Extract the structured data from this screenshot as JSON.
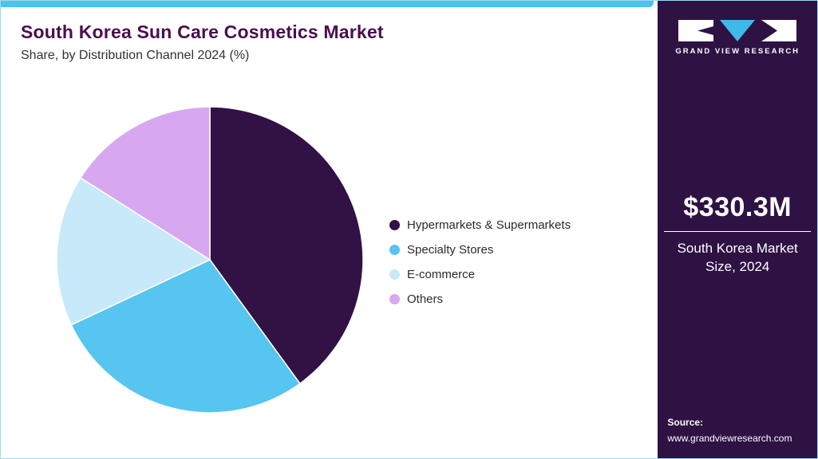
{
  "header": {
    "title": "South Korea Sun Care Cosmetics Market",
    "subtitle": "Share, by Distribution Channel 2024 (%)"
  },
  "chart_data": {
    "type": "pie",
    "title": "South Korea Sun Care Cosmetics Market Share, by Distribution Channel 2024 (%)",
    "unit": "%",
    "legend_position": "right",
    "start_angle_deg": 0,
    "direction": "clockwise",
    "slices": [
      {
        "label": "Hypermarkets & Supermarkets",
        "value": 40,
        "color": "#321245"
      },
      {
        "label": "Specialty Stores",
        "value": 28,
        "color": "#56c5ef"
      },
      {
        "label": "E-commerce",
        "value": 16,
        "color": "#c8e9f9"
      },
      {
        "label": "Others",
        "value": 16,
        "color": "#d7a8ef"
      }
    ]
  },
  "sidebar": {
    "brand": "GRAND VIEW RESEARCH",
    "market_size_value": "$330.3M",
    "market_size_label": "South Korea Market Size, 2024",
    "source_label": "Source:",
    "source_url": "www.grandviewresearch.com",
    "background_color": "#2e1244",
    "logo_accent_color": "#3fb9e8"
  },
  "colors": {
    "top_bar": "#4ac3ee",
    "title_text": "#4b0e4e"
  }
}
